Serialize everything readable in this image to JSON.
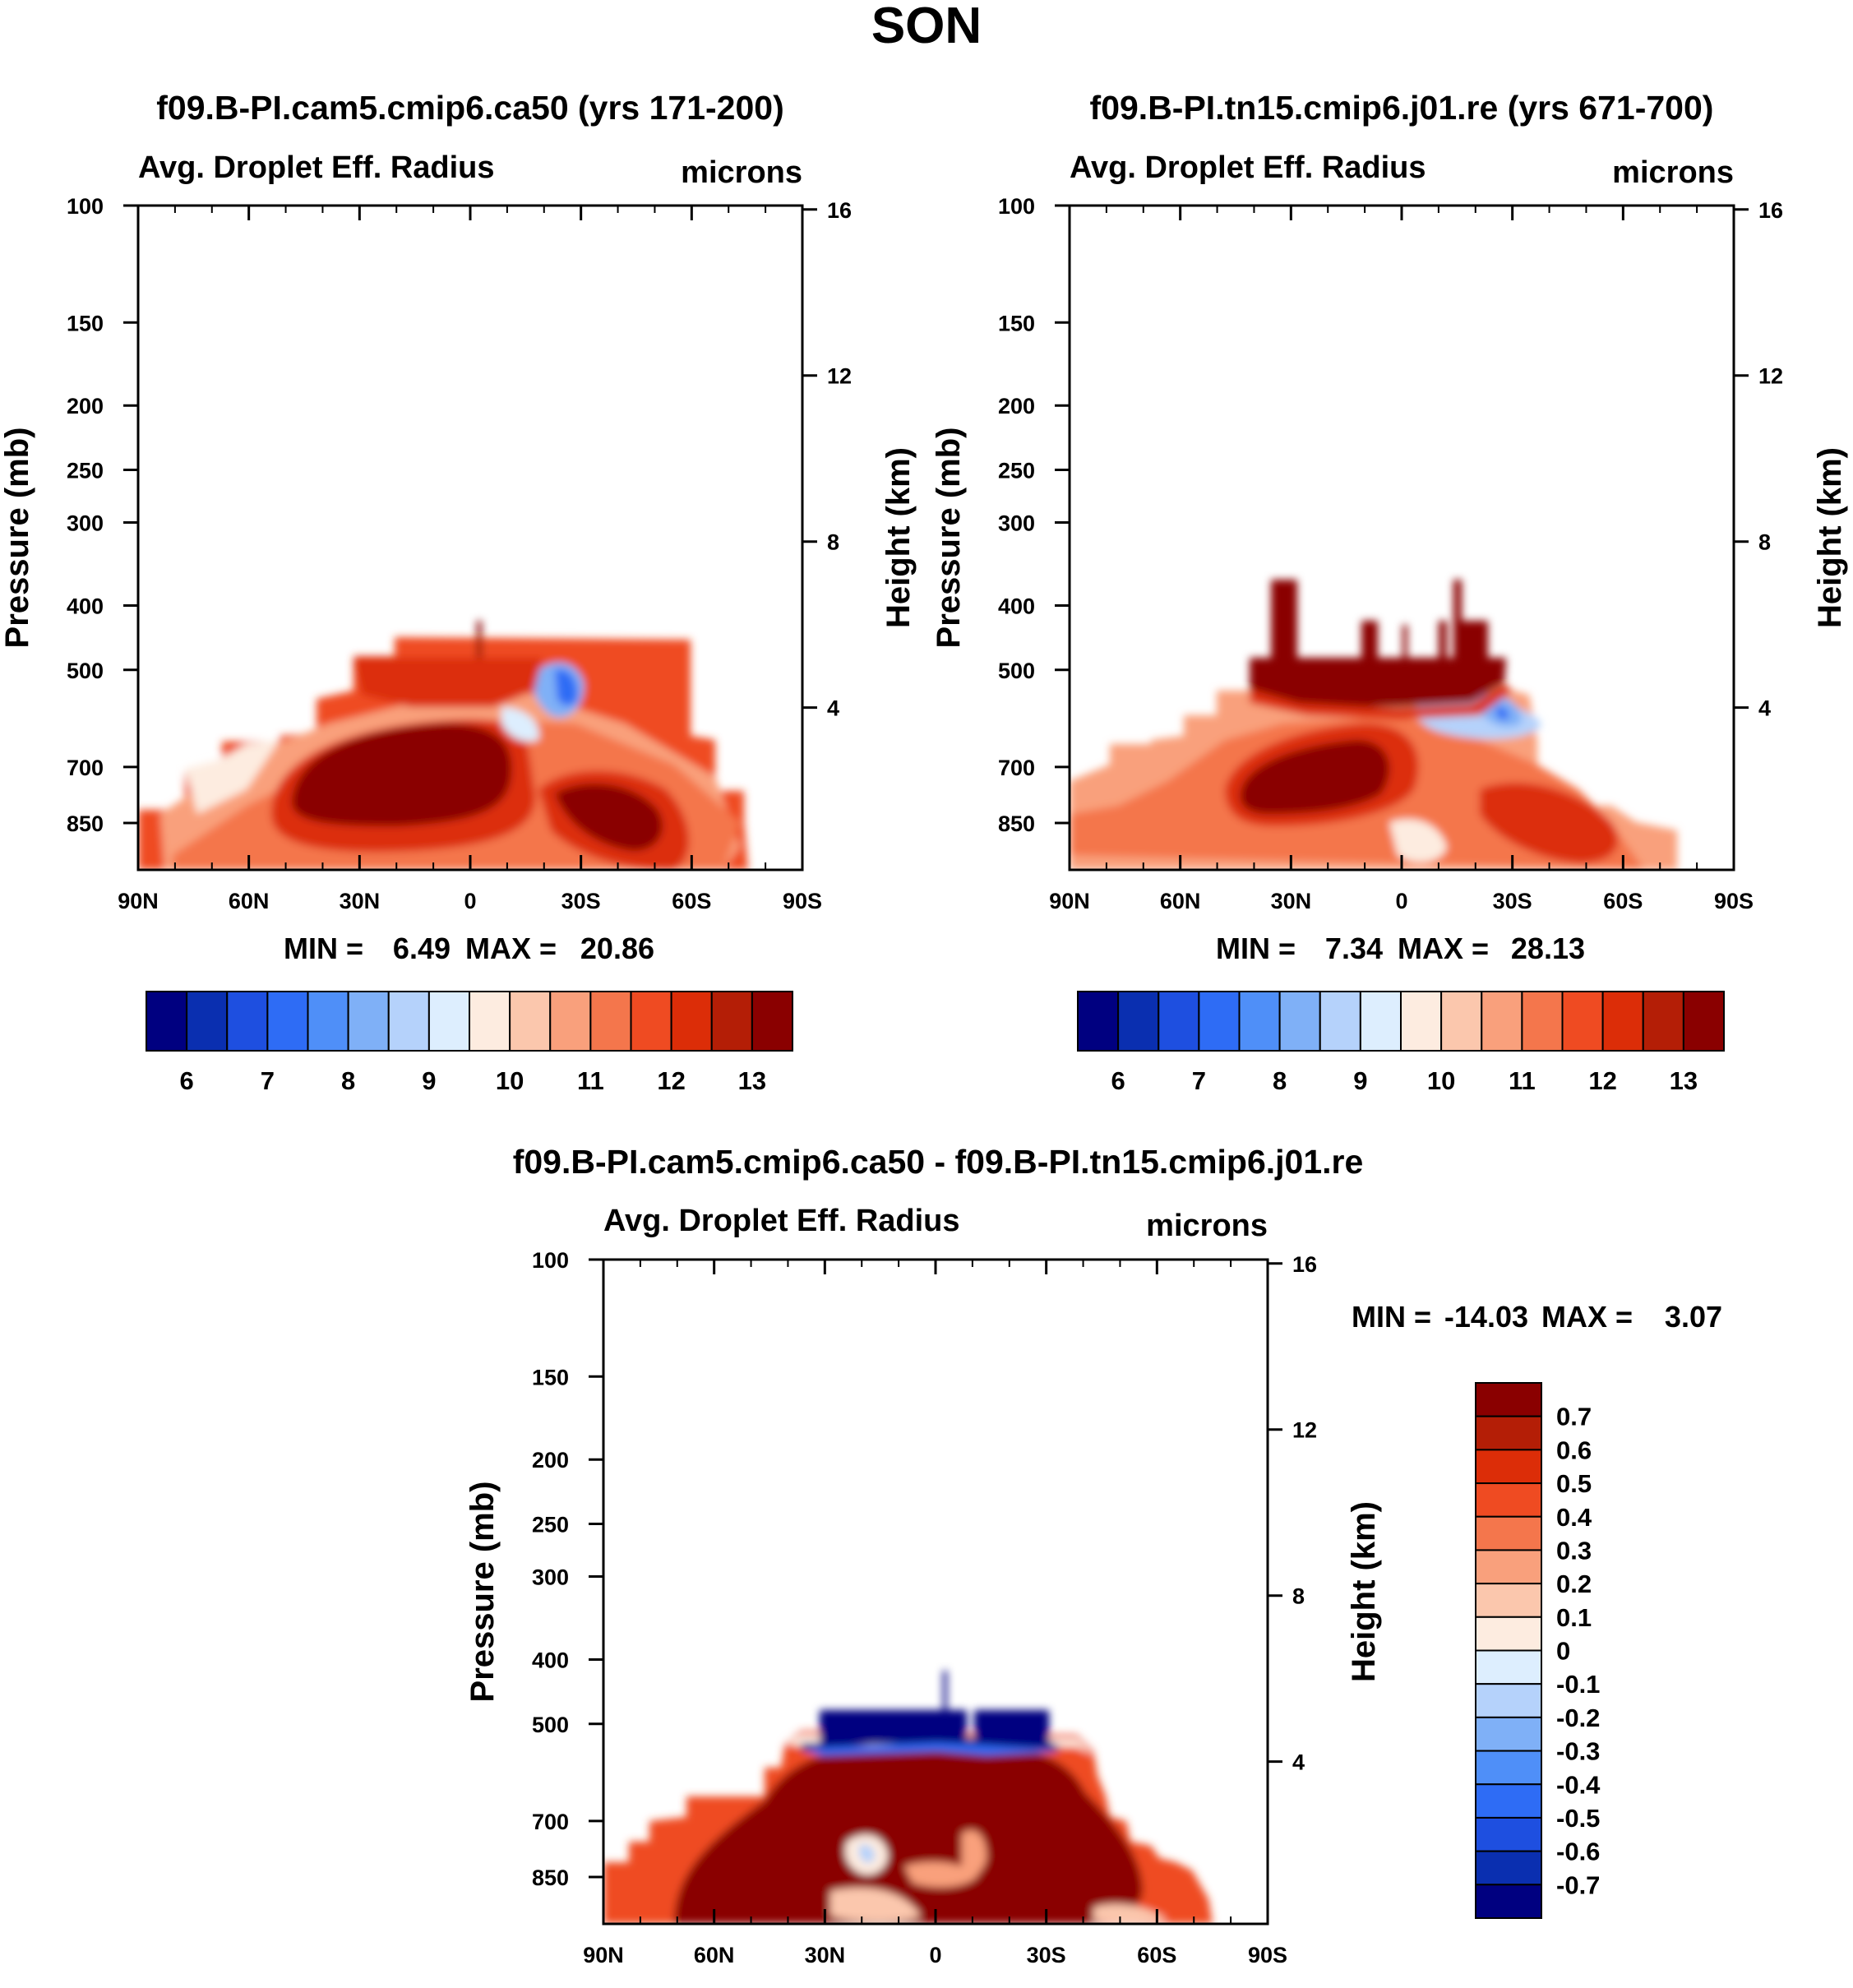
{
  "figure": {
    "title": "SON"
  },
  "colors": {
    "levels_hex": [
      "#000080",
      "#0a2fb0",
      "#1e4fe0",
      "#2e6cf5",
      "#4f8ff8",
      "#7fb0f7",
      "#b5d2fb",
      "#ddeefe",
      "#fdece0",
      "#fbc7ad",
      "#f9a07c",
      "#f4764c",
      "#ef4b22",
      "#dc2d08",
      "#b41e06",
      "#8a0000"
    ]
  },
  "chart_data": [
    {
      "type": "contour",
      "title": "f09.B-PI.cam5.cmip6.ca50 (yrs 171-200)",
      "variable": "Avg. Droplet Eff. Radius",
      "units": "microns",
      "xlabel": "",
      "ylabel": "Pressure (mb)",
      "y2label": "Height (km)",
      "x_ticks": [
        "90N",
        "60N",
        "30N",
        "0",
        "30S",
        "60S",
        "90S"
      ],
      "y_ticks": [
        "100",
        "150",
        "200",
        "250",
        "300",
        "400",
        "500",
        "700",
        "850"
      ],
      "y_ticks_values": [
        100,
        150,
        200,
        250,
        300,
        400,
        500,
        700,
        850
      ],
      "y2_ticks": [
        "16",
        "12",
        "8",
        "4"
      ],
      "y2_ticks_values": [
        16,
        12,
        8,
        4
      ],
      "xlim": [
        -90,
        90
      ],
      "ylim": [
        1000,
        100
      ],
      "min_label": "MIN =",
      "min_value": "6.49",
      "max_label": "MAX =",
      "max_value": "20.86",
      "colorbar_labels": [
        "6",
        "7",
        "8",
        "9",
        "10",
        "11",
        "12",
        "13"
      ],
      "summary": "Droplet effective radius cloud layer between ~1000 and ~450 mb, from ~85N to ~75S; maxima (>13) near 700 mb around 30N-10S and 30S-50S; minima (<8) near 500 mb at ~25S-30S"
    },
    {
      "type": "contour",
      "title": "f09.B-PI.tn15.cmip6.j01.re (yrs 671-700)",
      "variable": "Avg. Droplet Eff. Radius",
      "units": "microns",
      "xlabel": "",
      "ylabel": "Pressure (mb)",
      "y2label": "Height (km)",
      "x_ticks": [
        "90N",
        "60N",
        "30N",
        "0",
        "30S",
        "60S",
        "90S"
      ],
      "y_ticks": [
        "100",
        "150",
        "200",
        "250",
        "300",
        "400",
        "500",
        "700",
        "850"
      ],
      "y_ticks_values": [
        100,
        150,
        200,
        250,
        300,
        400,
        500,
        700,
        850
      ],
      "y2_ticks": [
        "16",
        "12",
        "8",
        "4"
      ],
      "y2_ticks_values": [
        16,
        12,
        8,
        4
      ],
      "xlim": [
        -90,
        90
      ],
      "ylim": [
        1000,
        100
      ],
      "min_label": "MIN =",
      "min_value": "7.34",
      "max_label": "MAX =",
      "max_value": "28.13",
      "colorbar_labels": [
        "6",
        "7",
        "8",
        "9",
        "10",
        "11",
        "12",
        "13"
      ],
      "summary": "Large effective radius (>13) capping the cloud layer from ~40N to ~30S between ~350 and ~500 mb; secondary maxima near 700 mb around 30N-5N and 35S-50S"
    },
    {
      "type": "contour",
      "title": "f09.B-PI.cam5.cmip6.ca50 - f09.B-PI.tn15.cmip6.j01.re",
      "variable": "Avg. Droplet Eff. Radius",
      "units": "microns",
      "xlabel": "",
      "ylabel": "Pressure (mb)",
      "y2label": "Height (km)",
      "x_ticks": [
        "90N",
        "60N",
        "30N",
        "0",
        "30S",
        "60S",
        "90S"
      ],
      "y_ticks": [
        "100",
        "150",
        "200",
        "250",
        "300",
        "400",
        "500",
        "700",
        "850"
      ],
      "y_ticks_values": [
        100,
        150,
        200,
        250,
        300,
        400,
        500,
        700,
        850
      ],
      "y2_ticks": [
        "16",
        "12",
        "8",
        "4"
      ],
      "y2_ticks_values": [
        16,
        12,
        8,
        4
      ],
      "xlim": [
        -90,
        90
      ],
      "ylim": [
        1000,
        100
      ],
      "min_label": "MIN =",
      "min_value": "-14.03",
      "max_label": "MAX =",
      "max_value": "3.07",
      "colorbar_labels": [
        "0.7",
        "0.6",
        "0.5",
        "0.4",
        "0.3",
        "0.2",
        "0.1",
        "0",
        "-0.1",
        "-0.2",
        "-0.3",
        "-0.4",
        "-0.5",
        "-0.6",
        "-0.7"
      ],
      "summary": "Difference is strongly negative (<-0.7) in the layer ~450-530 mb from ~30N to ~30S and strongly positive (>0.7) below, 550-1000 mb"
    }
  ]
}
